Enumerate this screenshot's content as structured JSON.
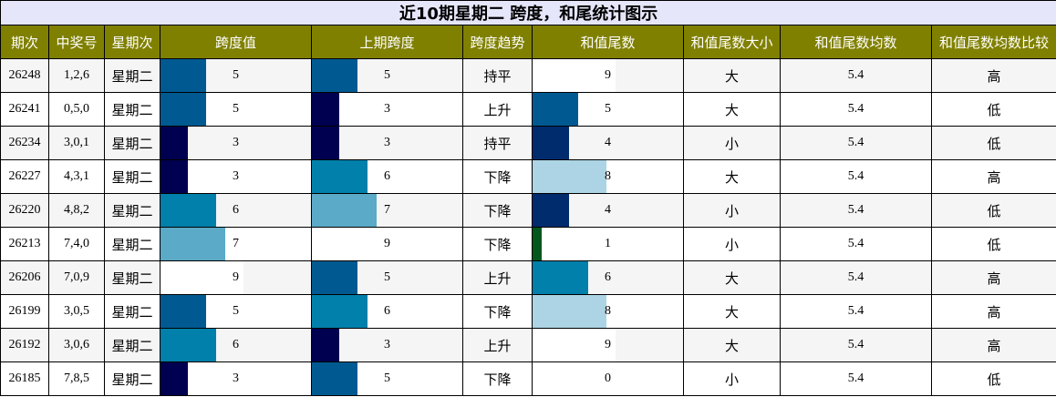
{
  "title": "近10期星期二 跨度，和尾统计图示",
  "headers": [
    "期次",
    "中奖号",
    "星期次",
    "跨度值",
    "上期跨度",
    "跨度趋势",
    "和值尾数",
    "和值尾数大小",
    "和值尾数均数",
    "和值尾数均数比较"
  ],
  "bar_max": 9,
  "bar_colors": {
    "0": "#000050",
    "1": "#00581d",
    "2": "#00005a",
    "3": "#000050",
    "4": "#002c6e",
    "5": "#005a91",
    "6": "#0080aa",
    "7": "#5aaac8",
    "8": "#acd4e4",
    "9": "#ffffff"
  },
  "rows": [
    {
      "period": "26248",
      "numbers": "1,2,6",
      "weekday": "星期二",
      "span": 5,
      "prev_span": 5,
      "trend": "持平",
      "tail": 9,
      "tail_size": "大",
      "tail_avg": "5.4",
      "tail_cmp": "高"
    },
    {
      "period": "26241",
      "numbers": "0,5,0",
      "weekday": "星期二",
      "span": 5,
      "prev_span": 3,
      "trend": "上升",
      "tail": 5,
      "tail_size": "大",
      "tail_avg": "5.4",
      "tail_cmp": "低"
    },
    {
      "period": "26234",
      "numbers": "3,0,1",
      "weekday": "星期二",
      "span": 3,
      "prev_span": 3,
      "trend": "持平",
      "tail": 4,
      "tail_size": "小",
      "tail_avg": "5.4",
      "tail_cmp": "低"
    },
    {
      "period": "26227",
      "numbers": "4,3,1",
      "weekday": "星期二",
      "span": 3,
      "prev_span": 6,
      "trend": "下降",
      "tail": 8,
      "tail_size": "大",
      "tail_avg": "5.4",
      "tail_cmp": "高"
    },
    {
      "period": "26220",
      "numbers": "4,8,2",
      "weekday": "星期二",
      "span": 6,
      "prev_span": 7,
      "trend": "下降",
      "tail": 4,
      "tail_size": "小",
      "tail_avg": "5.4",
      "tail_cmp": "低"
    },
    {
      "period": "26213",
      "numbers": "7,4,0",
      "weekday": "星期二",
      "span": 7,
      "prev_span": 9,
      "trend": "下降",
      "tail": 1,
      "tail_size": "小",
      "tail_avg": "5.4",
      "tail_cmp": "低"
    },
    {
      "period": "26206",
      "numbers": "7,0,9",
      "weekday": "星期二",
      "span": 9,
      "prev_span": 5,
      "trend": "上升",
      "tail": 6,
      "tail_size": "大",
      "tail_avg": "5.4",
      "tail_cmp": "高"
    },
    {
      "period": "26199",
      "numbers": "3,0,5",
      "weekday": "星期二",
      "span": 5,
      "prev_span": 6,
      "trend": "下降",
      "tail": 8,
      "tail_size": "大",
      "tail_avg": "5.4",
      "tail_cmp": "高"
    },
    {
      "period": "26192",
      "numbers": "3,0,6",
      "weekday": "星期二",
      "span": 6,
      "prev_span": 3,
      "trend": "上升",
      "tail": 9,
      "tail_size": "大",
      "tail_avg": "5.4",
      "tail_cmp": "高"
    },
    {
      "period": "26185",
      "numbers": "7,8,5",
      "weekday": "星期二",
      "span": 3,
      "prev_span": 5,
      "trend": "下降",
      "tail": 0,
      "tail_size": "小",
      "tail_avg": "5.4",
      "tail_cmp": "低"
    }
  ]
}
